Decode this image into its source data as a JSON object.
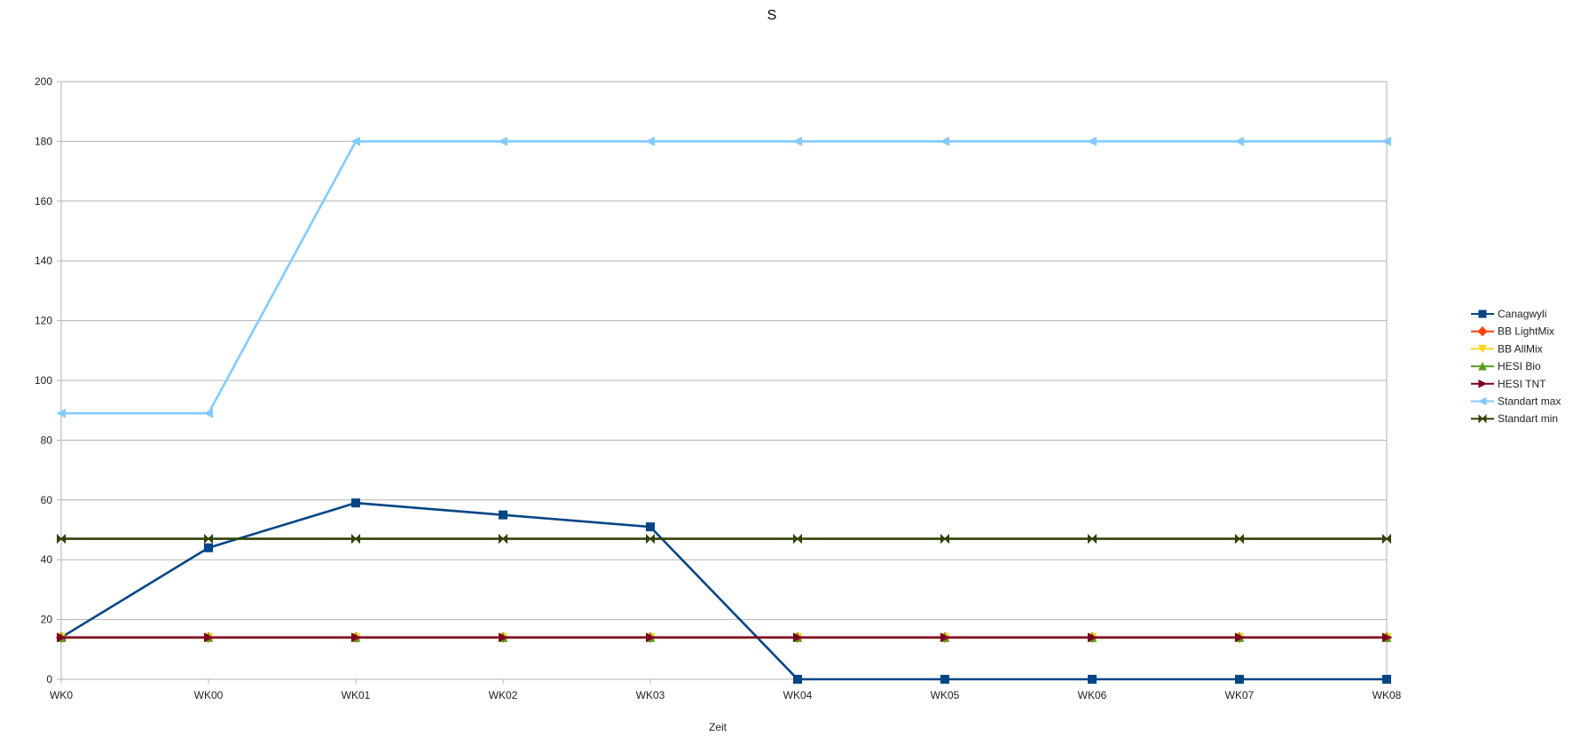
{
  "chart_data": {
    "type": "line",
    "title": "S",
    "xlabel": "Zeit",
    "ylabel": "",
    "ylim": [
      0,
      200
    ],
    "yticks": [
      0,
      20,
      40,
      60,
      80,
      100,
      120,
      140,
      160,
      180,
      200
    ],
    "categories": [
      "WK0",
      "WK00",
      "WK01",
      "WK02",
      "WK03",
      "WK04",
      "WK05",
      "WK06",
      "WK07",
      "WK08"
    ],
    "grid": "horizontal",
    "legend_position": "right",
    "series": [
      {
        "name": "Canagwyli",
        "color": "#004586",
        "marker": "square",
        "values": [
          14,
          44,
          59,
          55,
          51,
          0,
          0,
          0,
          0,
          0
        ]
      },
      {
        "name": "BB LightMix",
        "color": "#ff420e",
        "marker": "diamond",
        "values": [
          14,
          14,
          14,
          14,
          14,
          14,
          14,
          14,
          14,
          14
        ]
      },
      {
        "name": "BB AllMix",
        "color": "#ffd320",
        "marker": "triangle-down",
        "values": [
          14,
          14,
          14,
          14,
          14,
          14,
          14,
          14,
          14,
          14
        ]
      },
      {
        "name": "HESI Bio",
        "color": "#579d1c",
        "marker": "triangle-up",
        "values": [
          14,
          14,
          14,
          14,
          14,
          14,
          14,
          14,
          14,
          14
        ]
      },
      {
        "name": "HESI TNT",
        "color": "#7e0021",
        "marker": "triangle-right",
        "values": [
          14,
          14,
          14,
          14,
          14,
          14,
          14,
          14,
          14,
          14
        ]
      },
      {
        "name": "Standart max",
        "color": "#83caff",
        "marker": "triangle-left",
        "values": [
          89,
          89,
          180,
          180,
          180,
          180,
          180,
          180,
          180,
          180
        ]
      },
      {
        "name": "Standart min",
        "color": "#314004",
        "marker": "bowtie",
        "values": [
          47,
          47,
          47,
          47,
          47,
          47,
          47,
          47,
          47,
          47
        ]
      }
    ]
  }
}
